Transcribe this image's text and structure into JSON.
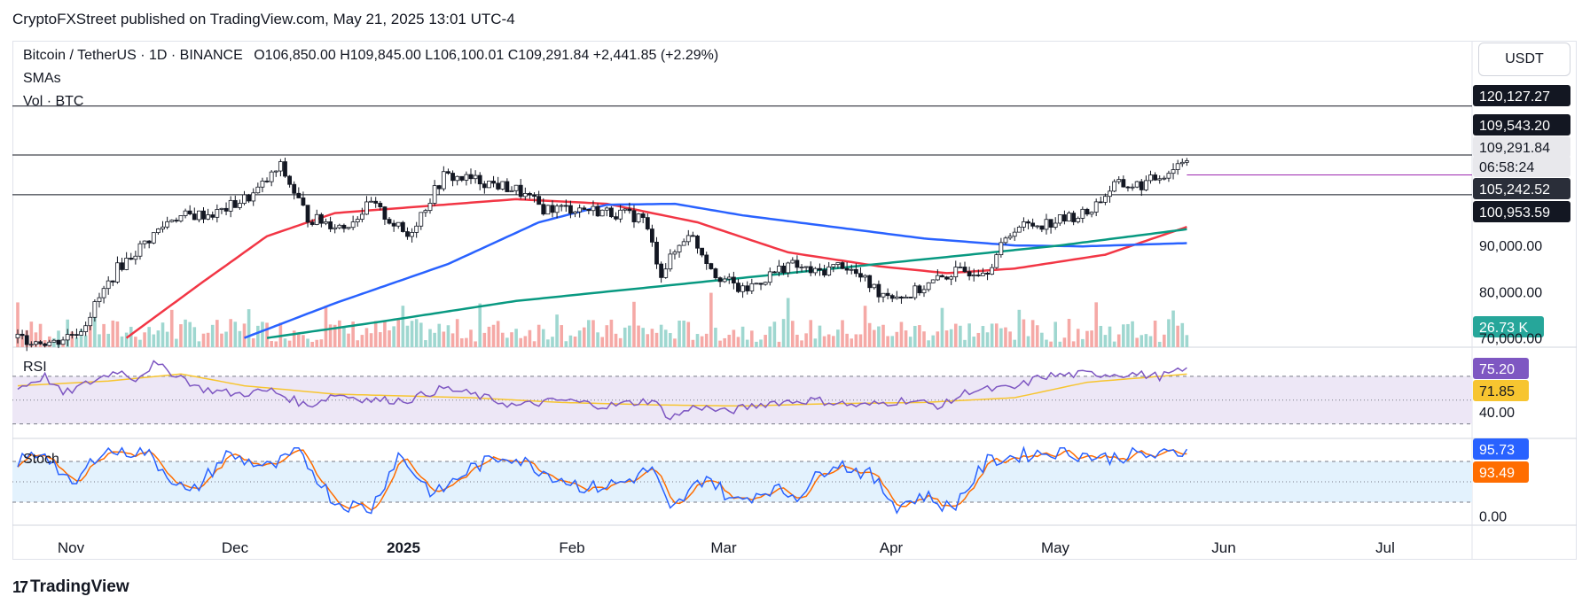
{
  "header": {
    "publisher_line": "CryptoFXStreet published on TradingView.com, May 21, 2025 13:01 UTC-4",
    "symbol": "Bitcoin / TetherUS · 1D · BINANCE",
    "ohlc": "O106,850.00  H109,845.00  L106,100.01  C109,291.84  +2,441.85 (+2.29%)",
    "indicator_smas": "SMAs",
    "indicator_vol": "Vol · BTC",
    "currency_button": "USDT"
  },
  "footer": {
    "brand": "TradingView",
    "brand_mark": "17"
  },
  "colors": {
    "up": "#26a69a",
    "down": "#ef5350",
    "vol_up": "#9fd7d0",
    "vol_down": "#f5a9a6",
    "sma50": "#f23645",
    "sma100": "#2962ff",
    "sma200": "#089981",
    "rsi": "#7e57c2",
    "rsi_ma": "#f7c530",
    "stoch_k": "#2962ff",
    "stoch_d": "#ff6d00",
    "rsi_band": "#ede7f6",
    "stoch_band": "#e3f2fd"
  },
  "chart_data": [
    {
      "type": "line",
      "name": "price",
      "subtype": "candlestick",
      "x_axis_ticks": [
        "Nov",
        "Dec",
        "2025",
        "Feb",
        "Mar",
        "Apr",
        "May",
        "Jun",
        "Jul"
      ],
      "y_ticks": [
        "90,000.00",
        "80,000.00",
        "70,000.00"
      ],
      "ylim": [
        68000,
        122000
      ],
      "price_labels": [
        {
          "value": "120,127.27",
          "bg": "#131722",
          "fg": "#ffffff"
        },
        {
          "value": "109,543.20",
          "bg": "#131722",
          "fg": "#ffffff"
        },
        {
          "value": "109,291.84",
          "bg": "#e8e8ec",
          "fg": "#131722"
        },
        {
          "value": "06:58:24",
          "bg": "#e8e8ec",
          "fg": "#131722"
        },
        {
          "value": "105,242.52",
          "bg": "#2a2e39",
          "fg": "#ffffff"
        },
        {
          "value": "100,953.59",
          "bg": "#131722",
          "fg": "#ffffff"
        },
        {
          "value": "26.73 K",
          "bg": "#26a69a",
          "fg": "#ffffff"
        }
      ],
      "horizontal_levels": [
        120127.27,
        109543.2,
        100953.59
      ],
      "current_price_line": 105242.52,
      "close_anchors": [
        [
          0,
          70000
        ],
        [
          8,
          69000
        ],
        [
          14,
          72000
        ],
        [
          22,
          85000
        ],
        [
          34,
          96000
        ],
        [
          44,
          97000
        ],
        [
          52,
          101000
        ],
        [
          58,
          107000
        ],
        [
          64,
          96000
        ],
        [
          72,
          94000
        ],
        [
          78,
          99000
        ],
        [
          86,
          92000
        ],
        [
          94,
          105000
        ],
        [
          102,
          104000
        ],
        [
          110,
          102000
        ],
        [
          116,
          98000
        ],
        [
          124,
          98000
        ],
        [
          132,
          97000
        ],
        [
          138,
          96000
        ],
        [
          142,
          84000
        ],
        [
          148,
          93000
        ],
        [
          154,
          84000
        ],
        [
          160,
          80000
        ],
        [
          170,
          86000
        ],
        [
          176,
          84000
        ],
        [
          182,
          86000
        ],
        [
          190,
          80000
        ],
        [
          196,
          79000
        ],
        [
          206,
          84000
        ],
        [
          214,
          85000
        ],
        [
          220,
          94000
        ],
        [
          228,
          95000
        ],
        [
          236,
          97000
        ],
        [
          242,
          103000
        ],
        [
          248,
          103000
        ],
        [
          254,
          106000
        ],
        [
          258,
          109300
        ]
      ],
      "series": [
        {
          "name": "SMA 50",
          "values": [
            [
              24,
              70000
            ],
            [
              40,
              81500
            ],
            [
              55,
              92000
            ],
            [
              70,
              97000
            ],
            [
              90,
              98500
            ],
            [
              110,
              100000
            ],
            [
              130,
              99000
            ],
            [
              150,
              95000
            ],
            [
              170,
              88500
            ],
            [
              190,
              85500
            ],
            [
              205,
              84000
            ],
            [
              220,
              85000
            ],
            [
              240,
              88000
            ],
            [
              258,
              94000
            ]
          ]
        },
        {
          "name": "SMA 100",
          "values": [
            [
              50,
              70000
            ],
            [
              70,
              77500
            ],
            [
              95,
              86000
            ],
            [
              115,
              95000
            ],
            [
              130,
              98800
            ],
            [
              145,
              99000
            ],
            [
              160,
              96500
            ],
            [
              180,
              94000
            ],
            [
              200,
              91500
            ],
            [
              220,
              90000
            ],
            [
              235,
              89800
            ],
            [
              258,
              90500
            ]
          ]
        },
        {
          "name": "SMA 200",
          "values": [
            [
              55,
              70000
            ],
            [
              80,
              73500
            ],
            [
              110,
              78000
            ],
            [
              140,
              81000
            ],
            [
              170,
              84000
            ],
            [
              200,
              87000
            ],
            [
              230,
              90000
            ],
            [
              258,
              93500
            ]
          ]
        }
      ],
      "volume_last": "26.73 K"
    },
    {
      "type": "line",
      "name": "RSI",
      "y_ticks": [
        "40.00"
      ],
      "ylim": [
        20,
        90
      ],
      "levels": [
        70,
        50,
        30
      ],
      "labels": [
        {
          "value": "75.20",
          "bg": "#7e57c2",
          "fg": "#ffffff"
        },
        {
          "value": "71.85",
          "bg": "#f7c530",
          "fg": "#131722"
        }
      ],
      "rsi_anchors": [
        [
          0,
          60
        ],
        [
          6,
          70
        ],
        [
          10,
          55
        ],
        [
          16,
          65
        ],
        [
          22,
          75
        ],
        [
          26,
          68
        ],
        [
          30,
          80
        ],
        [
          36,
          70
        ],
        [
          40,
          60
        ],
        [
          48,
          55
        ],
        [
          56,
          58
        ],
        [
          64,
          45
        ],
        [
          70,
          55
        ],
        [
          78,
          50
        ],
        [
          86,
          50
        ],
        [
          94,
          60
        ],
        [
          100,
          55
        ],
        [
          110,
          45
        ],
        [
          120,
          50
        ],
        [
          130,
          45
        ],
        [
          140,
          50
        ],
        [
          144,
          35
        ],
        [
          150,
          45
        ],
        [
          156,
          40
        ],
        [
          166,
          48
        ],
        [
          176,
          50
        ],
        [
          186,
          45
        ],
        [
          196,
          50
        ],
        [
          204,
          45
        ],
        [
          210,
          58
        ],
        [
          220,
          60
        ],
        [
          226,
          70
        ],
        [
          236,
          72
        ],
        [
          246,
          72
        ],
        [
          252,
          70
        ],
        [
          258,
          75.2
        ]
      ],
      "ma_anchors": [
        [
          0,
          62
        ],
        [
          20,
          66
        ],
        [
          36,
          72
        ],
        [
          50,
          62
        ],
        [
          70,
          55
        ],
        [
          100,
          52
        ],
        [
          120,
          48
        ],
        [
          140,
          46
        ],
        [
          160,
          45
        ],
        [
          180,
          47
        ],
        [
          200,
          48
        ],
        [
          220,
          52
        ],
        [
          236,
          65
        ],
        [
          258,
          71.85
        ]
      ]
    },
    {
      "type": "line",
      "name": "Stoch",
      "y_ticks": [
        "0.00"
      ],
      "ylim": [
        -10,
        110
      ],
      "levels": [
        80,
        50,
        20
      ],
      "labels": [
        {
          "value": "95.73",
          "bg": "#2962ff",
          "fg": "#ffffff"
        },
        {
          "value": "93.49",
          "bg": "#ff6d00",
          "fg": "#ffffff"
        }
      ],
      "stoch_anchors": [
        [
          0,
          80
        ],
        [
          6,
          95
        ],
        [
          12,
          40
        ],
        [
          18,
          95
        ],
        [
          28,
          95
        ],
        [
          38,
          30
        ],
        [
          46,
          90
        ],
        [
          56,
          70
        ],
        [
          62,
          95
        ],
        [
          70,
          20
        ],
        [
          78,
          10
        ],
        [
          84,
          90
        ],
        [
          92,
          30
        ],
        [
          100,
          70
        ],
        [
          108,
          90
        ],
        [
          118,
          60
        ],
        [
          126,
          40
        ],
        [
          134,
          50
        ],
        [
          140,
          70
        ],
        [
          144,
          5
        ],
        [
          152,
          60
        ],
        [
          158,
          20
        ],
        [
          166,
          40
        ],
        [
          172,
          30
        ],
        [
          180,
          80
        ],
        [
          188,
          60
        ],
        [
          194,
          15
        ],
        [
          200,
          30
        ],
        [
          206,
          10
        ],
        [
          214,
          80
        ],
        [
          222,
          90
        ],
        [
          230,
          95
        ],
        [
          240,
          85
        ],
        [
          246,
          90
        ],
        [
          252,
          88
        ],
        [
          258,
          95.73
        ]
      ]
    }
  ]
}
